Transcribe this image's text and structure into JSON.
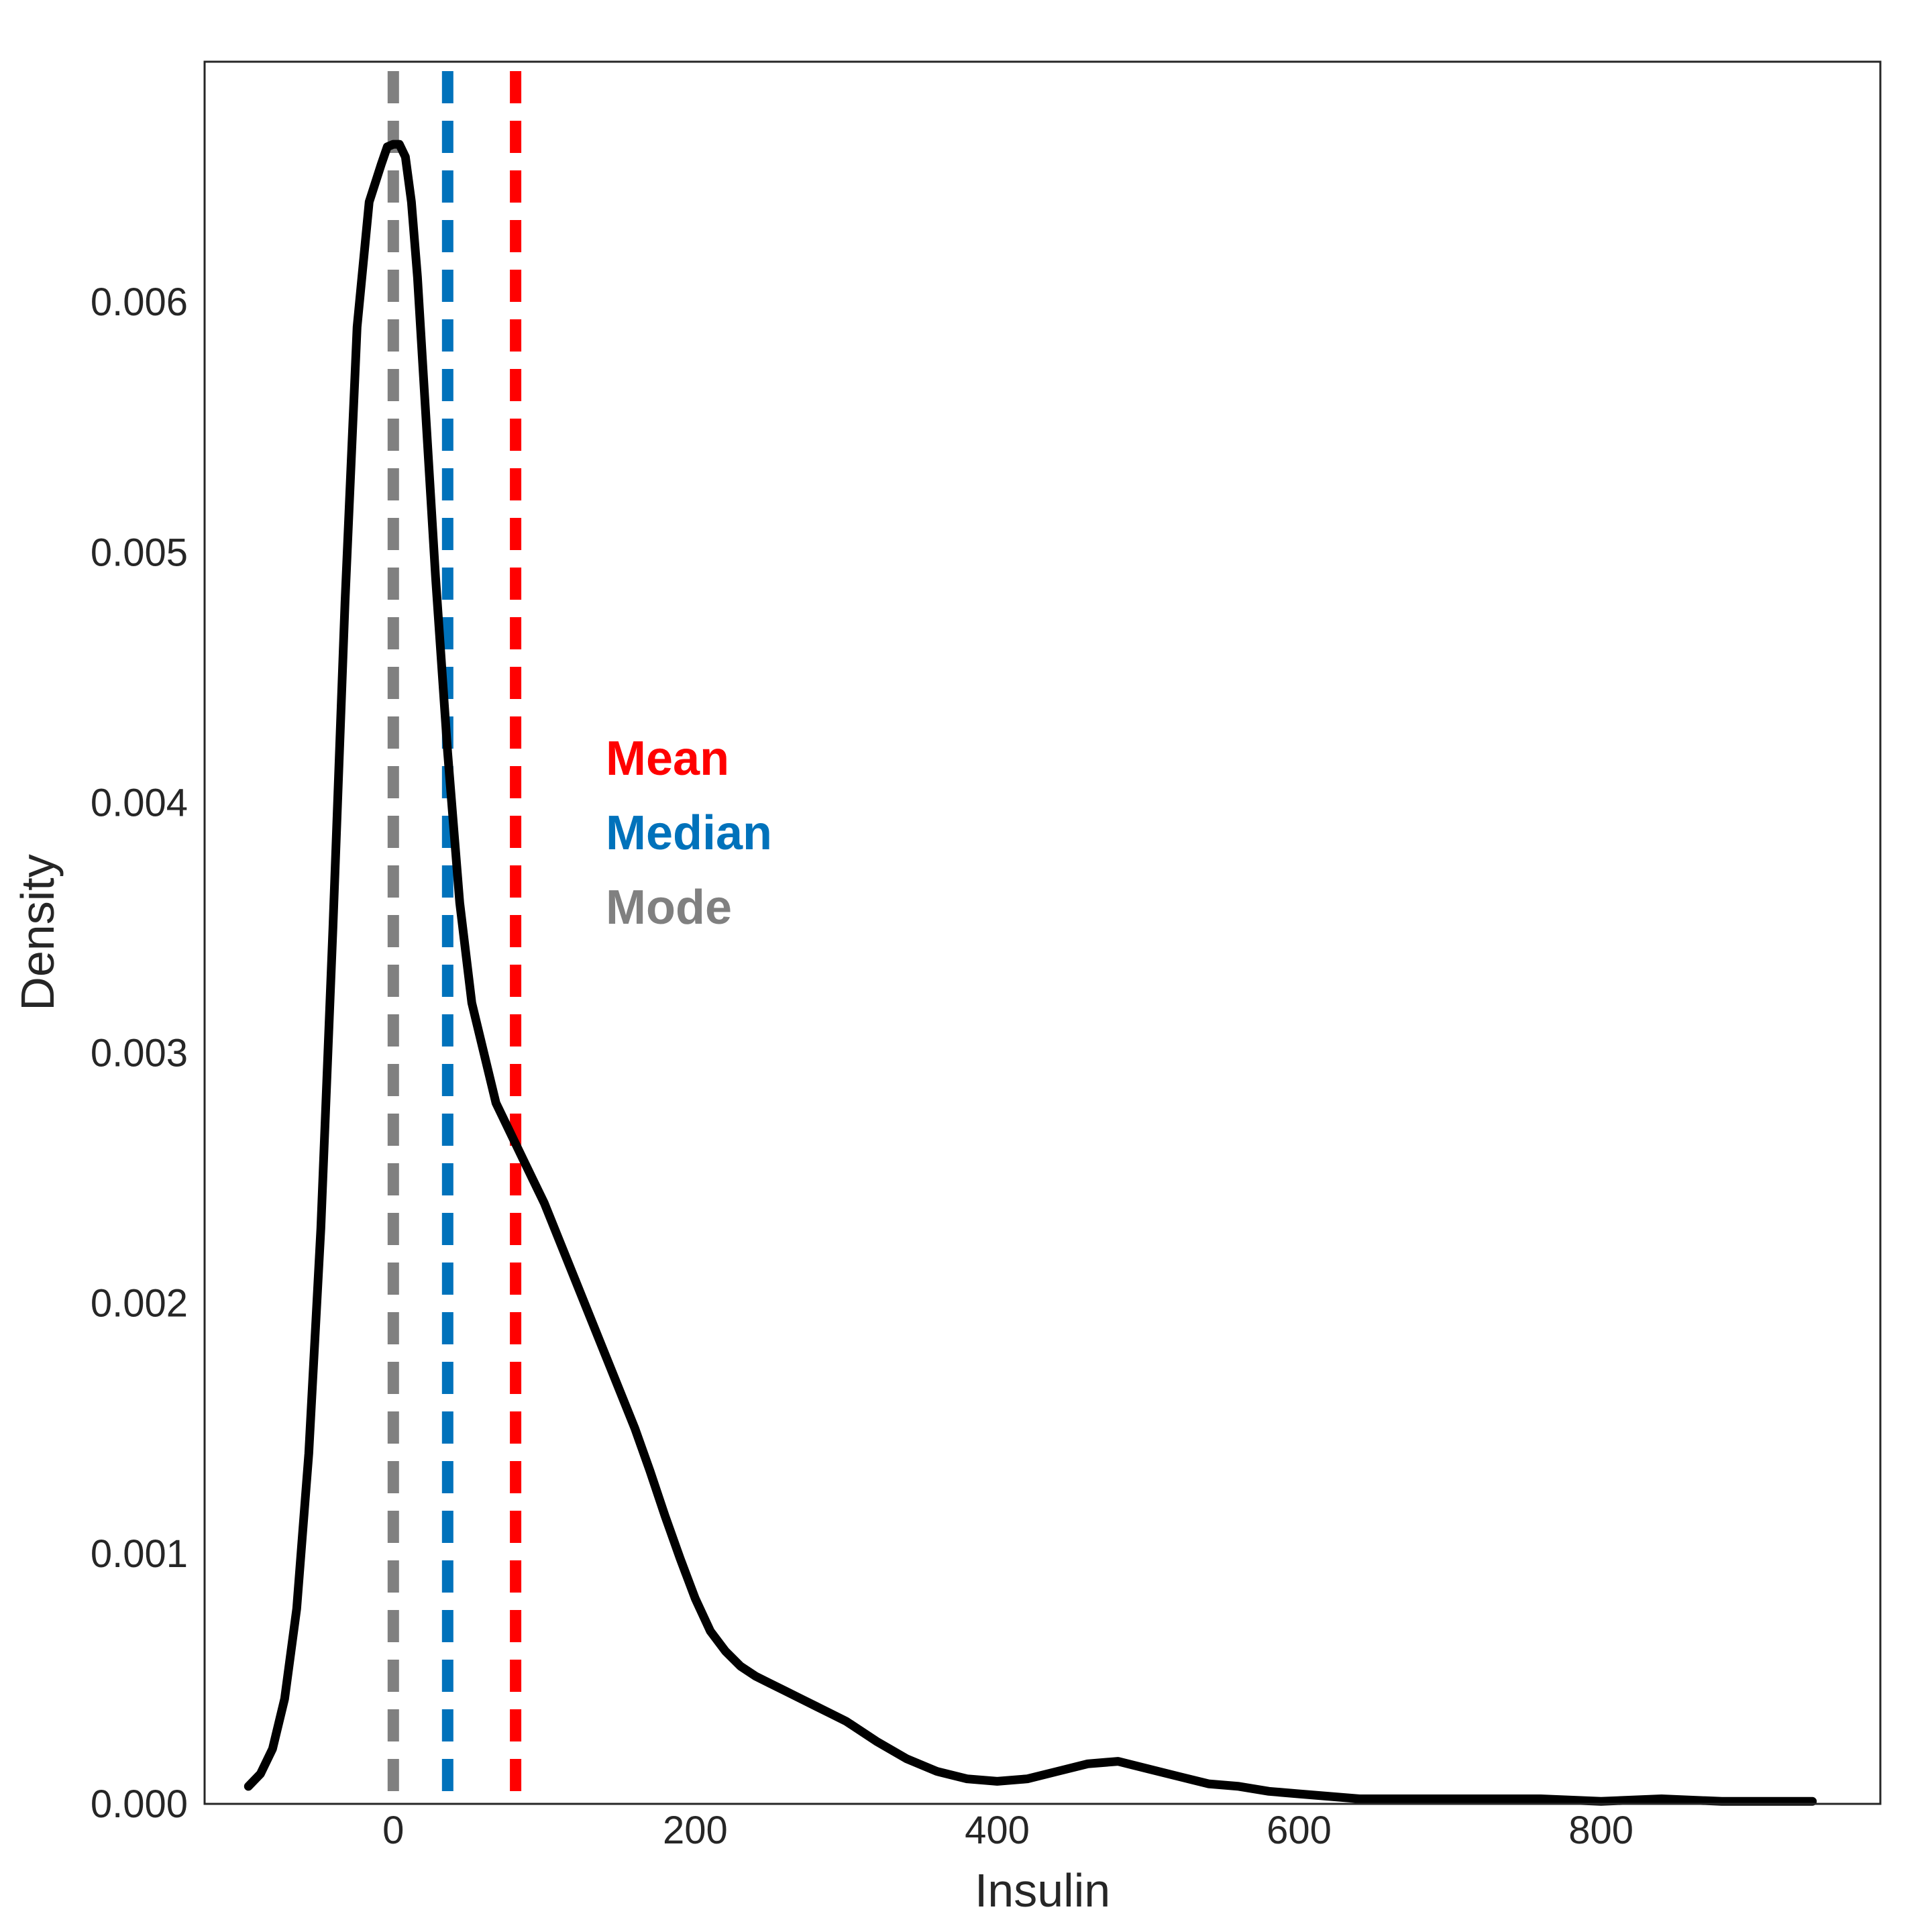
{
  "chart_data": {
    "type": "line",
    "title": "",
    "xlabel": "Insulin",
    "ylabel": "Density",
    "xlim": [
      -125,
      985
    ],
    "ylim": [
      0,
      0.00696
    ],
    "x_ticks": [
      {
        "value": 0,
        "label": "0"
      },
      {
        "value": 200,
        "label": "200"
      },
      {
        "value": 400,
        "label": "400"
      },
      {
        "value": 600,
        "label": "600"
      },
      {
        "value": 800,
        "label": "800"
      }
    ],
    "y_ticks": [
      {
        "value": 0,
        "label": "0.000"
      },
      {
        "value": 0.001,
        "label": "0.001"
      },
      {
        "value": 0.002,
        "label": "0.002"
      },
      {
        "value": 0.003,
        "label": "0.003"
      },
      {
        "value": 0.004,
        "label": "0.004"
      },
      {
        "value": 0.005,
        "label": "0.005"
      },
      {
        "value": 0.006,
        "label": "0.006"
      }
    ],
    "grid": false,
    "series": [
      {
        "color": "#000000",
        "x": [
          -96,
          -88,
          -80,
          -72,
          -64,
          -56,
          -48,
          -40,
          -32,
          -24,
          -16,
          -8,
          -4,
          0,
          4,
          8,
          12,
          16,
          20,
          28,
          36,
          44,
          52,
          60,
          68,
          76,
          84,
          92,
          100,
          110,
          120,
          130,
          140,
          150,
          160,
          170,
          180,
          190,
          200,
          210,
          220,
          230,
          240,
          250,
          260,
          270,
          280,
          290,
          300,
          320,
          340,
          360,
          380,
          400,
          420,
          440,
          460,
          480,
          500,
          520,
          540,
          560,
          580,
          600,
          640,
          700,
          760,
          800,
          840,
          880,
          940
        ],
        "y": [
          7e-05,
          0.00012,
          0.00022,
          0.00042,
          0.00078,
          0.0014,
          0.0023,
          0.0035,
          0.0048,
          0.0059,
          0.0064,
          0.00655,
          0.00662,
          0.00663,
          0.00663,
          0.00658,
          0.0064,
          0.0061,
          0.0057,
          0.0049,
          0.0042,
          0.0036,
          0.0032,
          0.003,
          0.0028,
          0.0027,
          0.0026,
          0.0025,
          0.0024,
          0.00225,
          0.0021,
          0.00195,
          0.0018,
          0.00165,
          0.0015,
          0.00133,
          0.00115,
          0.00098,
          0.00082,
          0.00069,
          0.00061,
          0.00055,
          0.00051,
          0.00048,
          0.00045,
          0.00042,
          0.00039,
          0.00036,
          0.00033,
          0.00025,
          0.00018,
          0.00013,
          0.0001,
          9e-05,
          0.0001,
          0.00013,
          0.00016,
          0.00017,
          0.00014,
          0.00011,
          8e-05,
          7e-05,
          5e-05,
          4e-05,
          2e-05,
          2e-05,
          2e-05,
          1e-05,
          2e-05,
          1e-05,
          1e-05
        ]
      }
    ],
    "reference_lines": [
      {
        "label": "Mean",
        "x": 81,
        "color": "#ff0000"
      },
      {
        "label": "Median",
        "x": 36,
        "color": "#0072bb"
      },
      {
        "label": "Mode",
        "x": 0,
        "color": "#808080"
      }
    ],
    "legend_placement": "center-left"
  }
}
